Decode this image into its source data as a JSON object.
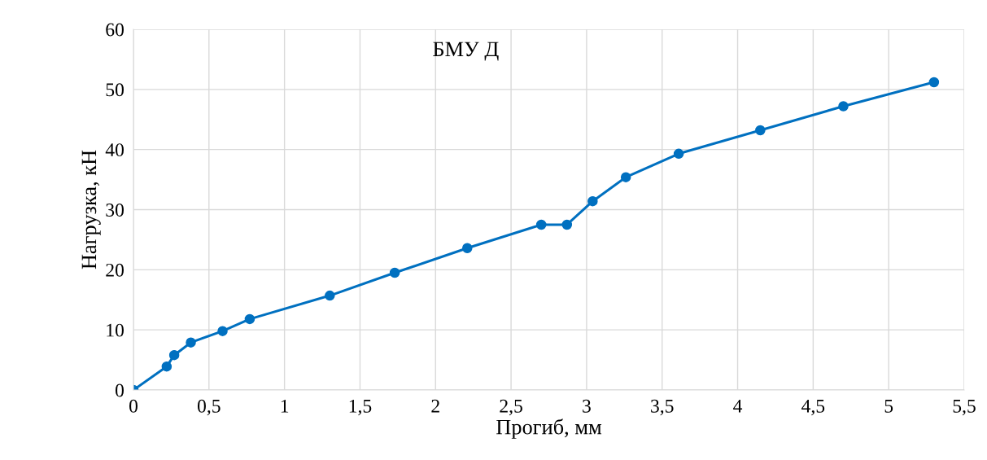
{
  "chart_data": {
    "type": "line",
    "title": "БМУ Д",
    "xlabel": "Прогиб, мм",
    "ylabel": "Нагрузка, кН",
    "x": [
      0,
      0.22,
      0.27,
      0.38,
      0.59,
      0.77,
      1.3,
      1.73,
      2.21,
      2.7,
      2.87,
      3.04,
      3.26,
      3.61,
      4.15,
      4.7,
      5.3
    ],
    "series": [
      {
        "color": "#0070c0",
        "values": [
          0,
          3.9,
          5.8,
          7.9,
          9.8,
          11.8,
          15.7,
          19.5,
          23.6,
          27.5,
          27.5,
          31.4,
          35.4,
          39.3,
          43.2,
          47.2,
          51.2
        ]
      }
    ],
    "xlim": [
      0,
      5.5
    ],
    "xticks": [
      0,
      {
        "value": 0.5,
        "label": "0,5"
      },
      1,
      {
        "value": 1.5,
        "label": "1,5"
      },
      2,
      {
        "value": 2.5,
        "label": "2,5"
      },
      3,
      {
        "value": 3.5,
        "label": "3,5"
      },
      4,
      {
        "value": 4.5,
        "label": "4,5"
      },
      5,
      {
        "value": 5.5,
        "label": "5,5"
      }
    ],
    "ylim": [
      0,
      60
    ],
    "yticks": [
      0,
      10,
      20,
      30,
      40,
      50,
      60
    ],
    "grid": true,
    "marker": "circle",
    "line_style": "solid",
    "legend": false
  }
}
